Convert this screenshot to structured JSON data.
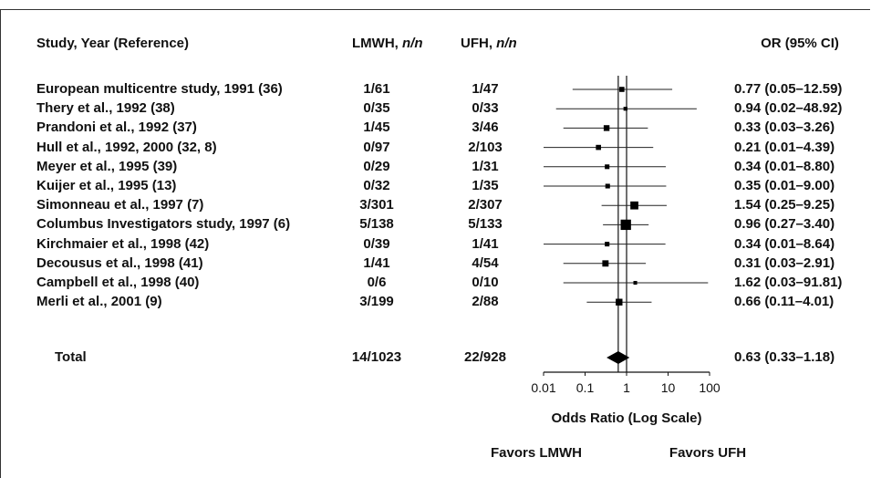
{
  "chart_data": {
    "type": "forest",
    "headers": {
      "study": "Study, Year (Reference)",
      "lmwh_name": "LMWH,",
      "lmwh_unit": "n/n",
      "ufh_name": "UFH,",
      "ufh_unit": "n/n",
      "or": "OR (95% CI)"
    },
    "studies": [
      {
        "label": "European multicentre study, 1991 (36)",
        "lmwh": "1/61",
        "ufh": "1/47",
        "or_text": "0.77 (0.05–12.59)",
        "or": 0.77,
        "lo": 0.05,
        "hi": 12.59,
        "weight": 1
      },
      {
        "label": "Thery et al., 1992 (38)",
        "lmwh": "0/35",
        "ufh": "0/33",
        "or_text": "0.94 (0.02–48.92)",
        "or": 0.94,
        "lo": 0.02,
        "hi": 48.92,
        "weight": 0.5
      },
      {
        "label": "Prandoni et al., 1992 (37)",
        "lmwh": "1/45",
        "ufh": "3/46",
        "or_text": "0.33 (0.03–3.26)",
        "or": 0.33,
        "lo": 0.03,
        "hi": 3.26,
        "weight": 1.3
      },
      {
        "label": "Hull et al., 1992, 2000 (32, 8)",
        "lmwh": "0/97",
        "ufh": "2/103",
        "or_text": "0.21 (0.01–4.39)",
        "or": 0.21,
        "lo": 0.01,
        "hi": 4.39,
        "weight": 1
      },
      {
        "label": "Meyer et al., 1995 (39)",
        "lmwh": "0/29",
        "ufh": "1/31",
        "or_text": "0.34 (0.01–8.80)",
        "or": 0.34,
        "lo": 0.01,
        "hi": 8.8,
        "weight": 0.8
      },
      {
        "label": "Kuijer et al., 1995 (13)",
        "lmwh": "0/32",
        "ufh": "1/35",
        "or_text": "0.35 (0.01–9.00)",
        "or": 0.35,
        "lo": 0.01,
        "hi": 9.0,
        "weight": 0.8
      },
      {
        "label": "Simonneau et al., 1997 (7)",
        "lmwh": "3/301",
        "ufh": "2/307",
        "or_text": "1.54 (0.25–9.25)",
        "or": 1.54,
        "lo": 0.25,
        "hi": 9.25,
        "weight": 2.2
      },
      {
        "label": "Columbus Investigators study, 1997 (6)",
        "lmwh": "5/138",
        "ufh": "5/133",
        "or_text": "0.96 (0.27–3.40)",
        "or": 0.96,
        "lo": 0.27,
        "hi": 3.4,
        "weight": 3.2
      },
      {
        "label": "Kirchmaier et al., 1998 (42)",
        "lmwh": "0/39",
        "ufh": "1/41",
        "or_text": "0.34 (0.01–8.64)",
        "or": 0.34,
        "lo": 0.01,
        "hi": 8.64,
        "weight": 0.8
      },
      {
        "label": "Decousus et al., 1998 (41)",
        "lmwh": "1/41",
        "ufh": "4/54",
        "or_text": "0.31 (0.03–2.91)",
        "or": 0.31,
        "lo": 0.03,
        "hi": 2.91,
        "weight": 1.5
      },
      {
        "label": "Campbell et al., 1998 (40)",
        "lmwh": "0/6",
        "ufh": "0/10",
        "or_text": "1.62 (0.03–91.81)",
        "or": 1.62,
        "lo": 0.03,
        "hi": 91.81,
        "weight": 0.4
      },
      {
        "label": "Merli et al., 2001 (9)",
        "lmwh": "3/199",
        "ufh": "2/88",
        "or_text": "0.66 (0.11–4.01)",
        "or": 0.66,
        "lo": 0.11,
        "hi": 4.01,
        "weight": 1.7
      }
    ],
    "total": {
      "label": "Total",
      "lmwh": "14/1023",
      "ufh": "22/928",
      "or_text": "0.63 (0.33–1.18)",
      "or": 0.63,
      "lo": 0.33,
      "hi": 1.18
    },
    "x_scale": "log",
    "xlim": [
      0.01,
      100
    ],
    "x_ticks": [
      0.01,
      0.1,
      1,
      10,
      100
    ],
    "x_tick_labels": [
      "0.01",
      "0.1",
      "1",
      "10",
      "100"
    ],
    "reference_line": 1,
    "xlabel": "Odds Ratio (Log Scale)",
    "favors_left": "Favors LMWH",
    "favors_right": "Favors UFH"
  }
}
